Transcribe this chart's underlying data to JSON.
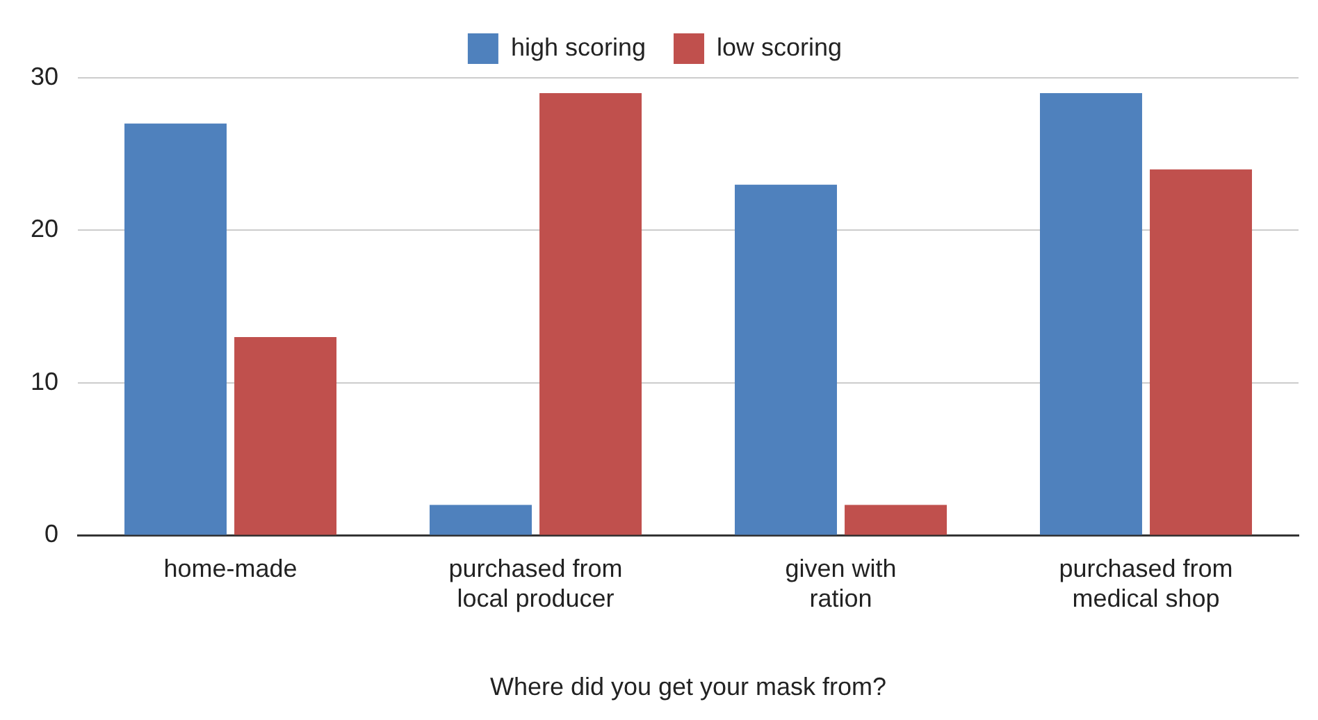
{
  "chart_data": {
    "type": "bar",
    "xlabel": "Where did you get your mask from?",
    "categories": [
      "home-made",
      "purchased from local producer",
      "given with ration",
      "purchased from medical shop"
    ],
    "series": [
      {
        "name": "high scoring",
        "color": "#4f81bd",
        "values": [
          27,
          2,
          23,
          29
        ]
      },
      {
        "name": "low scoring",
        "color": "#c0504d",
        "values": [
          13,
          29,
          2,
          24
        ]
      }
    ],
    "ylim": [
      0,
      30
    ],
    "yticks": [
      0,
      10,
      20,
      30
    ],
    "grid": "y",
    "legend": "top"
  }
}
